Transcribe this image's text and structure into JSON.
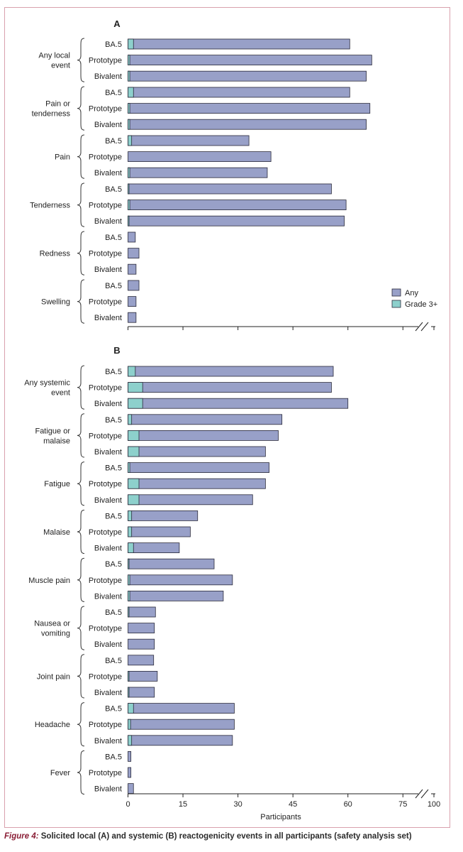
{
  "colors": {
    "any": "#98a0c8",
    "grade3": "#8dd0cc",
    "stroke": "#2a2a3a",
    "frame": "#d9a1ad",
    "caption_accent": "#8a1d35"
  },
  "caption": {
    "figure_label": "Figure 4:",
    "text": "Solicited local (A) and systemic (B) reactogenicity events in all participants (safety analysis set)"
  },
  "chart_data": [
    {
      "type": "bar",
      "panel": "A",
      "orientation": "horizontal",
      "stacked": true,
      "axis_ticks": [
        "0",
        "15",
        "30",
        "45",
        "60",
        "75",
        "100"
      ],
      "axis_break": "between 75 and 100",
      "legend": {
        "position": "bottom-right",
        "entries": [
          "Any",
          "Grade 3+"
        ]
      },
      "groups": [
        {
          "label": "Any local event",
          "label_lines": [
            "Any local",
            "event"
          ],
          "bars": [
            {
              "vaccine": "BA.5",
              "any": 60.5,
              "grade3": 1.5
            },
            {
              "vaccine": "Prototype",
              "any": 66.5,
              "grade3": 0.5
            },
            {
              "vaccine": "Bivalent",
              "any": 65,
              "grade3": 0.5
            }
          ]
        },
        {
          "label": "Pain or tenderness",
          "label_lines": [
            "Pain or",
            "tenderness"
          ],
          "bars": [
            {
              "vaccine": "BA.5",
              "any": 60.5,
              "grade3": 1.5
            },
            {
              "vaccine": "Prototype",
              "any": 66,
              "grade3": 0.5
            },
            {
              "vaccine": "Bivalent",
              "any": 65,
              "grade3": 0.5
            }
          ]
        },
        {
          "label": "Pain",
          "label_lines": [
            "Pain"
          ],
          "bars": [
            {
              "vaccine": "BA.5",
              "any": 33,
              "grade3": 1
            },
            {
              "vaccine": "Prototype",
              "any": 39,
              "grade3": 0
            },
            {
              "vaccine": "Bivalent",
              "any": 38,
              "grade3": 0.5
            }
          ]
        },
        {
          "label": "Tenderness",
          "label_lines": [
            "Tenderness"
          ],
          "bars": [
            {
              "vaccine": "BA.5",
              "any": 55.5,
              "grade3": 0.3
            },
            {
              "vaccine": "Prototype",
              "any": 59.5,
              "grade3": 0.5
            },
            {
              "vaccine": "Bivalent",
              "any": 59,
              "grade3": 0.3
            }
          ]
        },
        {
          "label": "Redness",
          "label_lines": [
            "Redness"
          ],
          "bars": [
            {
              "vaccine": "BA.5",
              "any": 2,
              "grade3": 0
            },
            {
              "vaccine": "Prototype",
              "any": 3,
              "grade3": 0
            },
            {
              "vaccine": "Bivalent",
              "any": 2.2,
              "grade3": 0
            }
          ]
        },
        {
          "label": "Swelling",
          "label_lines": [
            "Swelling"
          ],
          "bars": [
            {
              "vaccine": "BA.5",
              "any": 3,
              "grade3": 0
            },
            {
              "vaccine": "Prototype",
              "any": 2.2,
              "grade3": 0
            },
            {
              "vaccine": "Bivalent",
              "any": 2.2,
              "grade3": 0
            }
          ]
        }
      ]
    },
    {
      "type": "bar",
      "panel": "B",
      "orientation": "horizontal",
      "stacked": true,
      "xlabel": "Participants",
      "axis_ticks": [
        "0",
        "15",
        "30",
        "45",
        "60",
        "75",
        "100"
      ],
      "axis_break": "between 75 and 100",
      "groups": [
        {
          "label": "Any systemic event",
          "label_lines": [
            "Any systemic",
            "event"
          ],
          "bars": [
            {
              "vaccine": "BA.5",
              "any": 56,
              "grade3": 2
            },
            {
              "vaccine": "Prototype",
              "any": 55.5,
              "grade3": 4
            },
            {
              "vaccine": "Bivalent",
              "any": 60,
              "grade3": 4
            }
          ]
        },
        {
          "label": "Fatigue or malaise",
          "label_lines": [
            "Fatigue or",
            "malaise"
          ],
          "bars": [
            {
              "vaccine": "BA.5",
              "any": 42,
              "grade3": 1
            },
            {
              "vaccine": "Prototype",
              "any": 41,
              "grade3": 3
            },
            {
              "vaccine": "Bivalent",
              "any": 37.5,
              "grade3": 3
            }
          ]
        },
        {
          "label": "Fatigue",
          "label_lines": [
            "Fatigue"
          ],
          "bars": [
            {
              "vaccine": "BA.5",
              "any": 38.5,
              "grade3": 0.5
            },
            {
              "vaccine": "Prototype",
              "any": 37.5,
              "grade3": 3
            },
            {
              "vaccine": "Bivalent",
              "any": 34,
              "grade3": 3
            }
          ]
        },
        {
          "label": "Malaise",
          "label_lines": [
            "Malaise"
          ],
          "bars": [
            {
              "vaccine": "BA.5",
              "any": 19,
              "grade3": 1
            },
            {
              "vaccine": "Prototype",
              "any": 17,
              "grade3": 1
            },
            {
              "vaccine": "Bivalent",
              "any": 14,
              "grade3": 1.5
            }
          ]
        },
        {
          "label": "Muscle pain",
          "label_lines": [
            "Muscle pain"
          ],
          "bars": [
            {
              "vaccine": "BA.5",
              "any": 23.5,
              "grade3": 0.3
            },
            {
              "vaccine": "Prototype",
              "any": 28.5,
              "grade3": 0.5
            },
            {
              "vaccine": "Bivalent",
              "any": 26,
              "grade3": 0.5
            }
          ]
        },
        {
          "label": "Nausea or vomiting",
          "label_lines": [
            "Nausea or",
            "vomiting"
          ],
          "bars": [
            {
              "vaccine": "BA.5",
              "any": 7.5,
              "grade3": 0.3
            },
            {
              "vaccine": "Prototype",
              "any": 7.2,
              "grade3": 0
            },
            {
              "vaccine": "Bivalent",
              "any": 7.2,
              "grade3": 0
            }
          ]
        },
        {
          "label": "Joint pain",
          "label_lines": [
            "Joint pain"
          ],
          "bars": [
            {
              "vaccine": "BA.5",
              "any": 7,
              "grade3": 0
            },
            {
              "vaccine": "Prototype",
              "any": 8,
              "grade3": 0.3
            },
            {
              "vaccine": "Bivalent",
              "any": 7.2,
              "grade3": 0.3
            }
          ]
        },
        {
          "label": "Headache",
          "label_lines": [
            "Headache"
          ],
          "bars": [
            {
              "vaccine": "BA.5",
              "any": 29,
              "grade3": 1.5
            },
            {
              "vaccine": "Prototype",
              "any": 29,
              "grade3": 0.7
            },
            {
              "vaccine": "Bivalent",
              "any": 28.5,
              "grade3": 1
            }
          ]
        },
        {
          "label": "Fever",
          "label_lines": [
            "Fever"
          ],
          "bars": [
            {
              "vaccine": "BA.5",
              "any": 0.8,
              "grade3": 0
            },
            {
              "vaccine": "Prototype",
              "any": 0.8,
              "grade3": 0
            },
            {
              "vaccine": "Bivalent",
              "any": 1.5,
              "grade3": 0
            }
          ]
        }
      ]
    }
  ]
}
